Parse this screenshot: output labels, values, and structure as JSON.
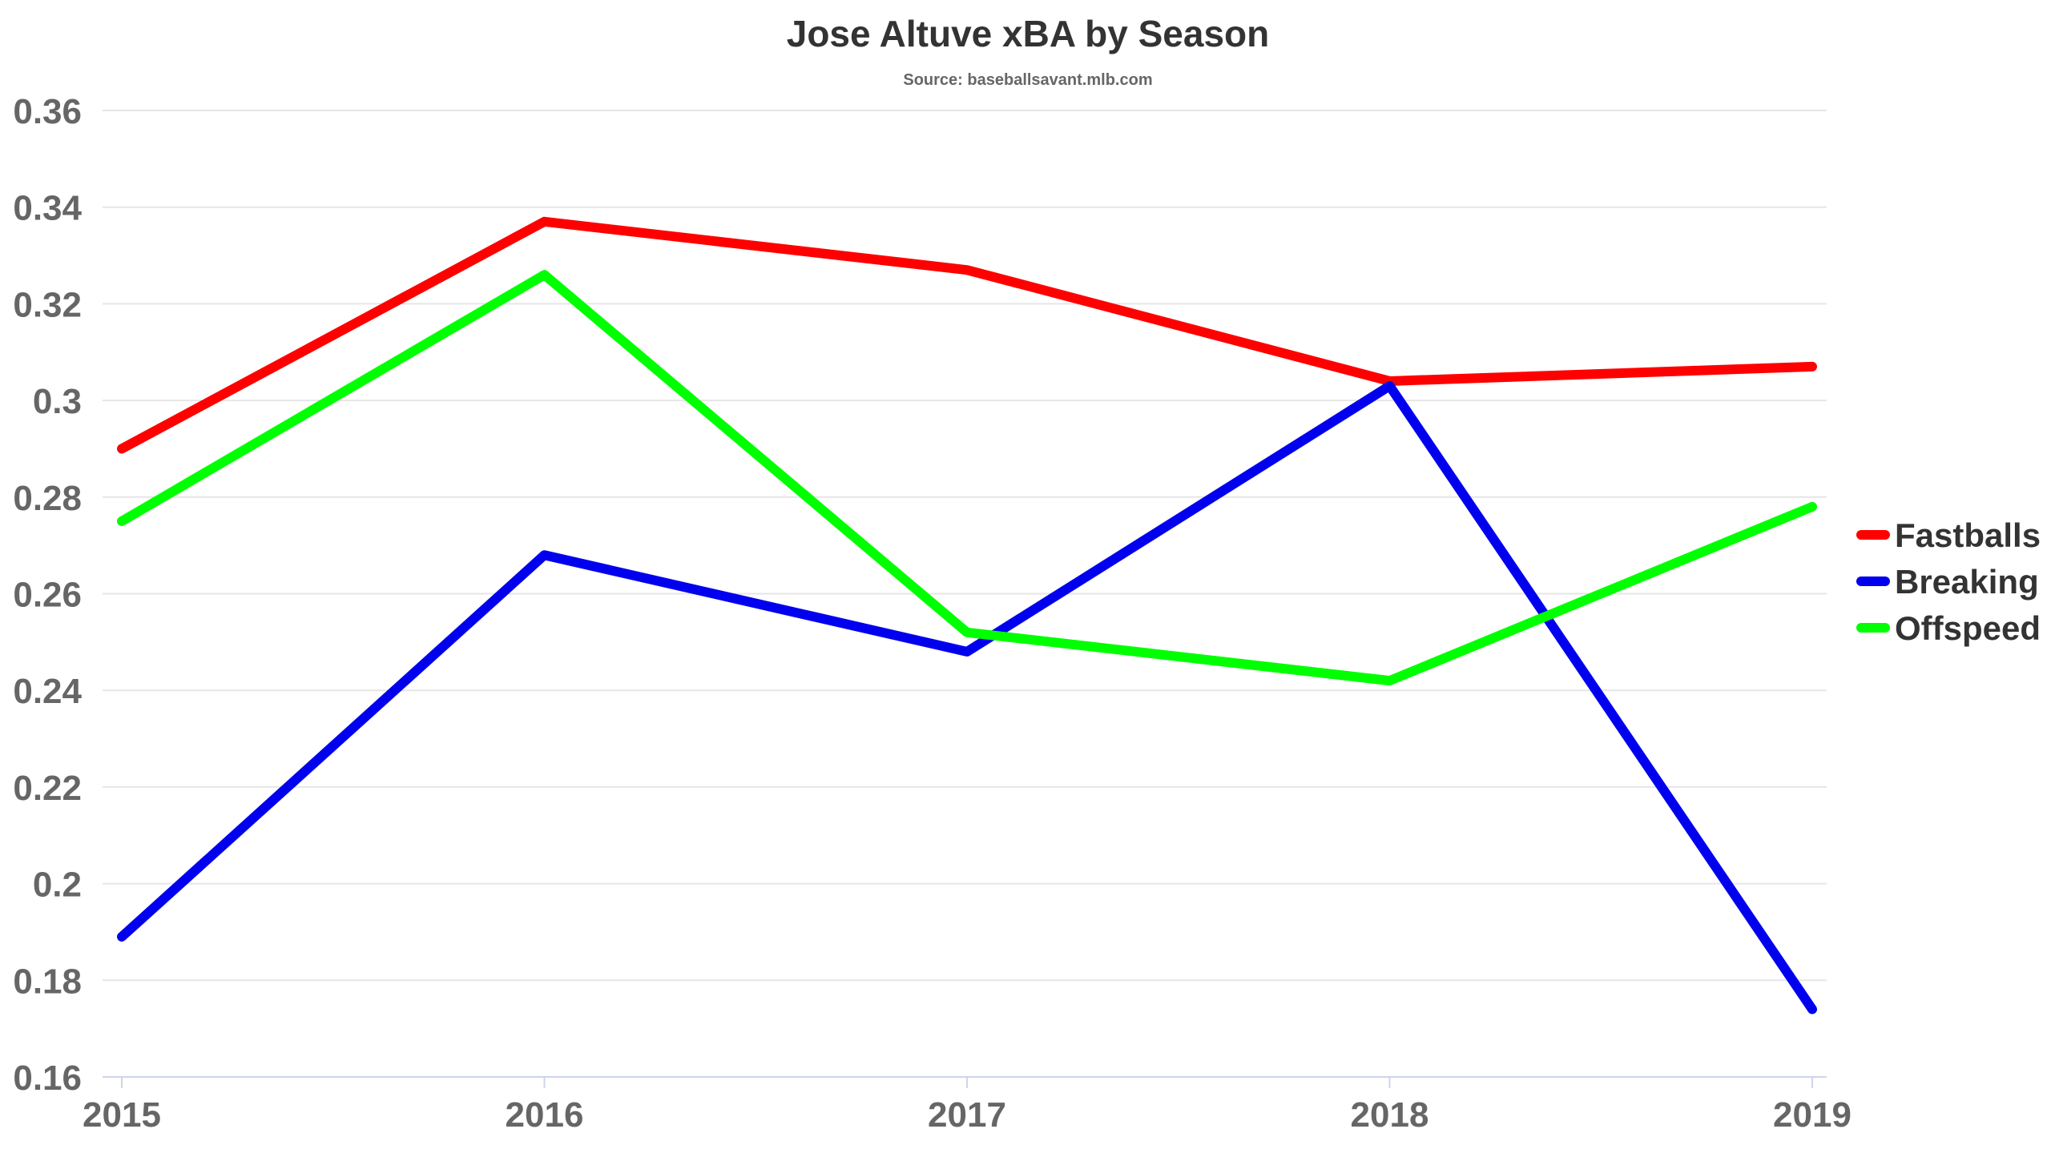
{
  "chart_data": {
    "type": "line",
    "title": "Jose Altuve xBA by Season",
    "subtitle": "Source: baseballsavant.mlb.com",
    "xlabel": "",
    "ylabel": "",
    "categories": [
      "2015",
      "2016",
      "2017",
      "2018",
      "2019"
    ],
    "ylim": [
      0.16,
      0.36
    ],
    "yticks": [
      0.16,
      0.18,
      0.2,
      0.22,
      0.24,
      0.26,
      0.28,
      0.3,
      0.32,
      0.34,
      0.36
    ],
    "ytick_labels": [
      "0.16",
      "0.18",
      "0.2",
      "0.22",
      "0.24",
      "0.26",
      "0.28",
      "0.3",
      "0.32",
      "0.34",
      "0.36"
    ],
    "grid": true,
    "legend_position": "right",
    "series": [
      {
        "name": "Fastballs",
        "color": "#ff0000",
        "values": [
          0.29,
          0.337,
          0.327,
          0.304,
          0.307
        ]
      },
      {
        "name": "Breaking",
        "color": "#0000ee",
        "values": [
          0.189,
          0.268,
          0.248,
          0.303,
          0.174
        ]
      },
      {
        "name": "Offspeed",
        "color": "#00ff00",
        "values": [
          0.275,
          0.326,
          0.252,
          0.242,
          0.278
        ]
      }
    ]
  }
}
